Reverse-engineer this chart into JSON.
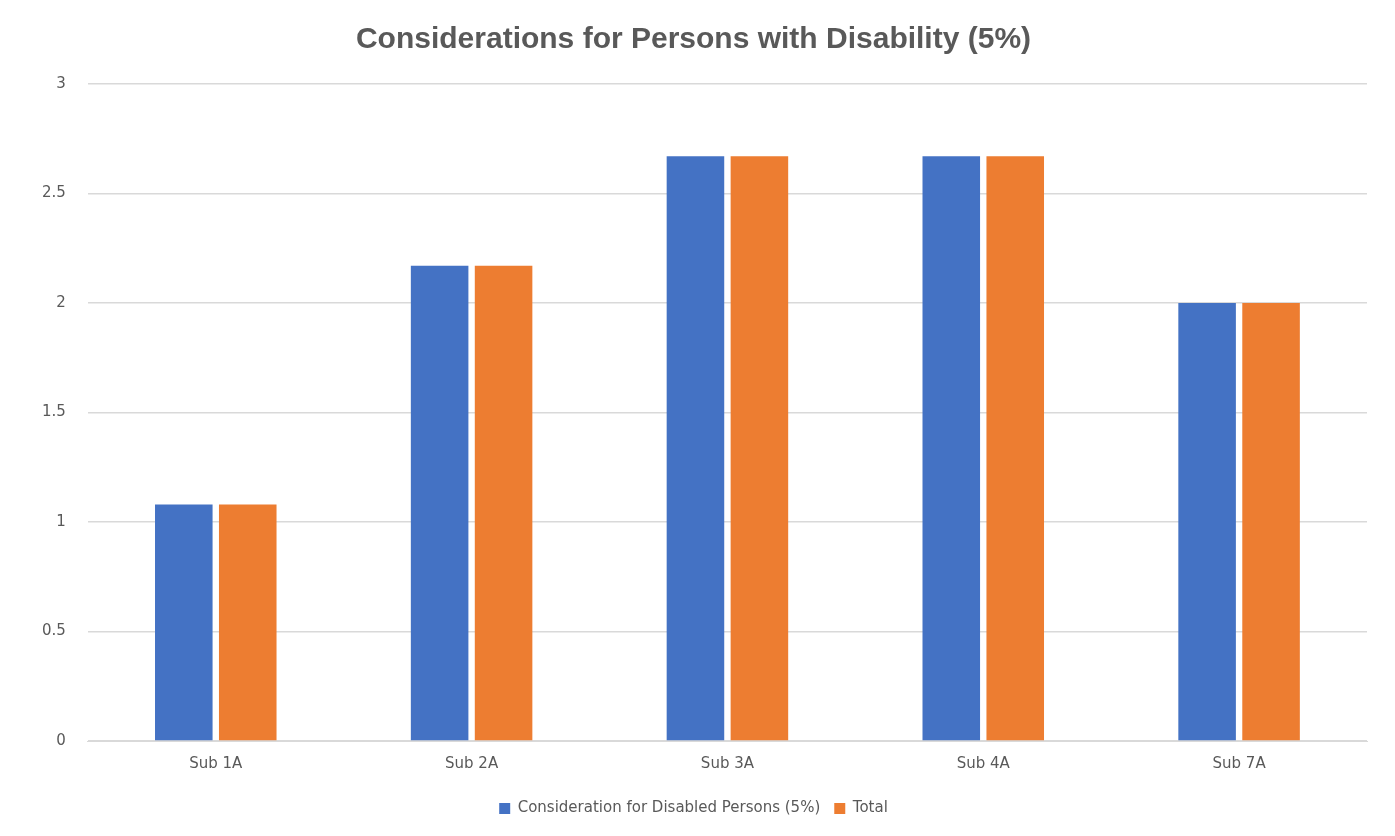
{
  "chart_data": {
    "type": "bar",
    "title": "Considerations for Persons with Disability (5%)",
    "categories": [
      "Sub 1A",
      "Sub 2A",
      "Sub 3A",
      "Sub 4A",
      "Sub 7A"
    ],
    "series": [
      {
        "name": "Consideration for Disabled Persons (5%)",
        "color": "#4472c4",
        "values": [
          1.08,
          2.17,
          2.67,
          2.67,
          2.0
        ]
      },
      {
        "name": "Total",
        "color": "#ed7d31",
        "values": [
          1.08,
          2.17,
          2.67,
          2.67,
          2.0
        ]
      }
    ],
    "ylim": [
      0,
      3
    ],
    "yticks": [
      0,
      0.5,
      1,
      1.5,
      2,
      2.5,
      3
    ],
    "grid": "y",
    "legend": "bottom"
  }
}
